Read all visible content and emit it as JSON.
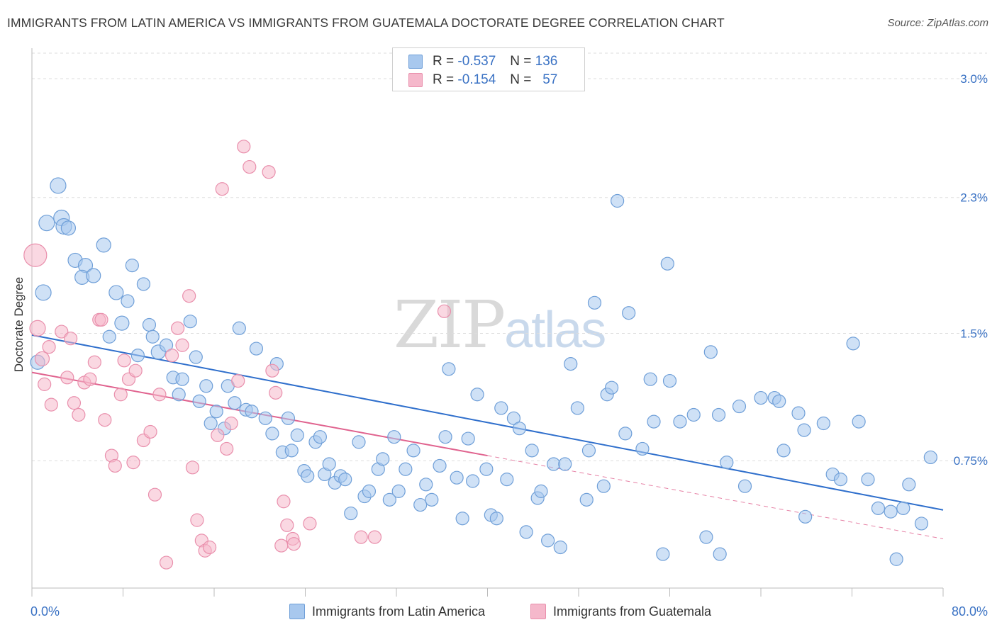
{
  "header": {
    "title": "IMMIGRANTS FROM LATIN AMERICA VS IMMIGRANTS FROM GUATEMALA DOCTORATE DEGREE CORRELATION CHART",
    "source": "Source: ZipAtlas.com"
  },
  "watermark": {
    "zip": "ZIP",
    "atlas": "atlas"
  },
  "legend": {
    "rows": [
      {
        "r_label": "R =",
        "r_value": "-0.537",
        "n_label": "N =",
        "n_value": "136"
      },
      {
        "r_label": "R =",
        "r_value": "-0.154",
        "n_label": "N =",
        "n_value": "57"
      }
    ]
  },
  "colors": {
    "blue_fill": "#a8c8ee",
    "blue_stroke": "#6f9fd8",
    "blue_line": "#2f6fcc",
    "pink_fill": "#f5b8cb",
    "pink_stroke": "#e98fac",
    "pink_line": "#e0628e",
    "tick_label": "#3a72c4",
    "grid": "#dddddd"
  },
  "chart_data": {
    "type": "scatter",
    "title": "IMMIGRANTS FROM LATIN AMERICA VS IMMIGRANTS FROM GUATEMALA DOCTORATE DEGREE CORRELATION CHART",
    "xlabel": "",
    "ylabel": "Doctorate Degree",
    "xlim": [
      0,
      80
    ],
    "ylim": [
      0,
      3.15
    ],
    "x_tick_labels": [
      {
        "value": 0,
        "label": "0.0%"
      },
      {
        "value": 80,
        "label": "80.0%"
      }
    ],
    "y_tick_labels": [
      {
        "value": 0.75,
        "label": "0.75%"
      },
      {
        "value": 1.5,
        "label": "1.5%"
      },
      {
        "value": 2.3,
        "label": "2.3%"
      },
      {
        "value": 3.0,
        "label": "3.0%"
      }
    ],
    "grid": true,
    "legend_position": "top-center",
    "series": [
      {
        "name": "Immigrants from Latin America",
        "color": "#a8c8ee",
        "trend": {
          "x0": 0,
          "y0": 1.49,
          "x1": 80,
          "y1": 0.46,
          "dashed_from": null
        },
        "points": [
          [
            0.5,
            1.33,
            10
          ],
          [
            1.0,
            1.74,
            11
          ],
          [
            1.3,
            2.15,
            11
          ],
          [
            2.3,
            2.37,
            11
          ],
          [
            2.6,
            2.18,
            11
          ],
          [
            2.8,
            2.13,
            11
          ],
          [
            3.2,
            2.12,
            10
          ],
          [
            3.8,
            1.93,
            10
          ],
          [
            4.7,
            1.9,
            10
          ],
          [
            4.4,
            1.83,
            10
          ],
          [
            5.4,
            1.84,
            10
          ],
          [
            6.3,
            2.02,
            10
          ],
          [
            6.8,
            1.48,
            9
          ],
          [
            7.4,
            1.74,
            10
          ],
          [
            7.9,
            1.56,
            10
          ],
          [
            8.4,
            1.69,
            9
          ],
          [
            8.8,
            1.9,
            9
          ],
          [
            9.3,
            1.37,
            9
          ],
          [
            9.8,
            1.79,
            9
          ],
          [
            10.3,
            1.55,
            9
          ],
          [
            10.6,
            1.48,
            9
          ],
          [
            11.1,
            1.39,
            10
          ],
          [
            11.8,
            1.43,
            9
          ],
          [
            12.4,
            1.24,
            9
          ],
          [
            12.9,
            1.14,
            9
          ],
          [
            13.2,
            1.23,
            9
          ],
          [
            13.9,
            1.57,
            9
          ],
          [
            14.4,
            1.36,
            9
          ],
          [
            14.7,
            1.1,
            9
          ],
          [
            15.3,
            1.19,
            9
          ],
          [
            15.7,
            0.97,
            9
          ],
          [
            16.2,
            1.04,
            9
          ],
          [
            16.9,
            0.94,
            9
          ],
          [
            17.2,
            1.19,
            9
          ],
          [
            17.8,
            1.09,
            9
          ],
          [
            18.2,
            1.53,
            9
          ],
          [
            18.8,
            1.05,
            9
          ],
          [
            19.3,
            1.04,
            9
          ],
          [
            19.7,
            1.41,
            9
          ],
          [
            20.5,
            1.0,
            9
          ],
          [
            21.1,
            0.91,
            9
          ],
          [
            21.5,
            1.32,
            9
          ],
          [
            22.0,
            0.8,
            9
          ],
          [
            22.5,
            1.0,
            9
          ],
          [
            22.8,
            0.81,
            9
          ],
          [
            23.3,
            0.9,
            9
          ],
          [
            23.9,
            0.69,
            9
          ],
          [
            24.2,
            0.66,
            9
          ],
          [
            24.9,
            0.86,
            9
          ],
          [
            25.3,
            0.89,
            9
          ],
          [
            25.7,
            0.67,
            9
          ],
          [
            26.1,
            0.73,
            9
          ],
          [
            26.6,
            0.62,
            9
          ],
          [
            27.1,
            0.66,
            9
          ],
          [
            27.5,
            0.64,
            9
          ],
          [
            28.0,
            0.44,
            9
          ],
          [
            28.7,
            0.86,
            9
          ],
          [
            29.2,
            0.54,
            9
          ],
          [
            29.6,
            0.57,
            9
          ],
          [
            30.4,
            0.7,
            9
          ],
          [
            30.8,
            0.76,
            9
          ],
          [
            31.4,
            0.52,
            9
          ],
          [
            31.8,
            0.89,
            9
          ],
          [
            32.2,
            0.57,
            9
          ],
          [
            32.8,
            0.7,
            9
          ],
          [
            33.5,
            0.81,
            9
          ],
          [
            34.1,
            0.49,
            9
          ],
          [
            34.6,
            0.61,
            9
          ],
          [
            35.1,
            0.52,
            9
          ],
          [
            35.8,
            0.72,
            9
          ],
          [
            36.3,
            0.89,
            9
          ],
          [
            36.6,
            1.29,
            9
          ],
          [
            37.3,
            0.65,
            9
          ],
          [
            37.8,
            0.41,
            9
          ],
          [
            38.3,
            0.88,
            9
          ],
          [
            38.7,
            0.63,
            9
          ],
          [
            39.1,
            1.14,
            9
          ],
          [
            39.9,
            0.7,
            9
          ],
          [
            40.3,
            0.43,
            9
          ],
          [
            40.8,
            0.41,
            9
          ],
          [
            41.2,
            1.06,
            9
          ],
          [
            41.7,
            0.64,
            9
          ],
          [
            42.3,
            1.0,
            9
          ],
          [
            42.8,
            0.94,
            9
          ],
          [
            43.4,
            0.33,
            9
          ],
          [
            43.9,
            0.81,
            9
          ],
          [
            44.4,
            0.53,
            9
          ],
          [
            44.7,
            0.57,
            9
          ],
          [
            45.3,
            0.28,
            9
          ],
          [
            45.8,
            0.73,
            9
          ],
          [
            46.4,
            0.24,
            9
          ],
          [
            46.8,
            0.73,
            9
          ],
          [
            47.3,
            1.32,
            9
          ],
          [
            47.9,
            1.06,
            9
          ],
          [
            48.7,
            0.52,
            9
          ],
          [
            48.9,
            0.81,
            9
          ],
          [
            49.4,
            1.68,
            9
          ],
          [
            50.2,
            0.6,
            9
          ],
          [
            50.5,
            1.14,
            9
          ],
          [
            50.9,
            1.18,
            9
          ],
          [
            51.4,
            2.28,
            9
          ],
          [
            52.1,
            0.91,
            9
          ],
          [
            52.4,
            1.62,
            9
          ],
          [
            53.6,
            0.82,
            9
          ],
          [
            54.3,
            1.23,
            9
          ],
          [
            54.6,
            0.98,
            9
          ],
          [
            55.4,
            0.2,
            9
          ],
          [
            55.8,
            1.91,
            9
          ],
          [
            56.0,
            1.22,
            9
          ],
          [
            56.9,
            0.98,
            9
          ],
          [
            58.1,
            1.02,
            9
          ],
          [
            59.2,
            0.3,
            9
          ],
          [
            59.6,
            1.39,
            9
          ],
          [
            60.3,
            1.02,
            9
          ],
          [
            60.4,
            0.2,
            9
          ],
          [
            61.0,
            0.74,
            9
          ],
          [
            62.1,
            1.07,
            9
          ],
          [
            62.6,
            0.6,
            9
          ],
          [
            64.0,
            1.12,
            9
          ],
          [
            65.2,
            1.12,
            9
          ],
          [
            65.6,
            1.1,
            9
          ],
          [
            66.0,
            0.81,
            9
          ],
          [
            67.3,
            1.03,
            9
          ],
          [
            67.8,
            0.93,
            9
          ],
          [
            67.9,
            0.42,
            9
          ],
          [
            69.5,
            0.97,
            9
          ],
          [
            70.3,
            0.67,
            9
          ],
          [
            71.0,
            0.64,
            9
          ],
          [
            72.1,
            1.44,
            9
          ],
          [
            72.6,
            0.98,
            9
          ],
          [
            73.4,
            0.64,
            9
          ],
          [
            74.3,
            0.47,
            9
          ],
          [
            75.4,
            0.45,
            9
          ],
          [
            75.9,
            0.17,
            9
          ],
          [
            76.5,
            0.47,
            9
          ],
          [
            77.0,
            0.61,
            9
          ],
          [
            78.1,
            0.38,
            9
          ],
          [
            78.9,
            0.77,
            9
          ]
        ]
      },
      {
        "name": "Immigrants from Guatemala",
        "color": "#f5b8cb",
        "trend": {
          "x0": 0,
          "y0": 1.27,
          "x1": 80,
          "y1": 0.29,
          "dashed_from": 40
        },
        "points": [
          [
            0.3,
            1.96,
            16
          ],
          [
            0.5,
            1.53,
            11
          ],
          [
            0.9,
            1.35,
            10
          ],
          [
            1.1,
            1.2,
            9
          ],
          [
            1.5,
            1.42,
            9
          ],
          [
            1.7,
            1.08,
            9
          ],
          [
            2.6,
            1.51,
            9
          ],
          [
            3.1,
            1.24,
            9
          ],
          [
            3.4,
            1.47,
            9
          ],
          [
            3.7,
            1.09,
            9
          ],
          [
            4.1,
            1.02,
            9
          ],
          [
            4.6,
            1.21,
            9
          ],
          [
            5.1,
            1.23,
            9
          ],
          [
            5.5,
            1.33,
            9
          ],
          [
            5.9,
            1.58,
            9
          ],
          [
            6.1,
            1.58,
            9
          ],
          [
            6.4,
            0.99,
            9
          ],
          [
            7.0,
            0.78,
            9
          ],
          [
            7.3,
            0.72,
            9
          ],
          [
            7.8,
            1.14,
            9
          ],
          [
            8.1,
            1.34,
            9
          ],
          [
            8.5,
            1.23,
            9
          ],
          [
            8.9,
            0.74,
            9
          ],
          [
            9.1,
            1.28,
            9
          ],
          [
            9.8,
            0.87,
            9
          ],
          [
            10.4,
            0.92,
            9
          ],
          [
            10.8,
            0.55,
            9
          ],
          [
            11.2,
            1.14,
            9
          ],
          [
            11.8,
            0.15,
            9
          ],
          [
            12.3,
            1.37,
            9
          ],
          [
            12.8,
            1.53,
            9
          ],
          [
            13.2,
            1.43,
            9
          ],
          [
            13.8,
            1.72,
            9
          ],
          [
            14.1,
            0.71,
            9
          ],
          [
            14.5,
            0.4,
            9
          ],
          [
            14.9,
            0.28,
            9
          ],
          [
            15.2,
            0.22,
            9
          ],
          [
            15.6,
            0.24,
            9
          ],
          [
            16.3,
            0.9,
            9
          ],
          [
            16.7,
            2.35,
            9
          ],
          [
            17.1,
            0.82,
            9
          ],
          [
            17.5,
            0.97,
            9
          ],
          [
            18.1,
            1.22,
            9
          ],
          [
            18.6,
            2.6,
            9
          ],
          [
            19.1,
            2.48,
            9
          ],
          [
            20.8,
            2.45,
            9
          ],
          [
            21.1,
            1.28,
            9
          ],
          [
            21.4,
            1.15,
            9
          ],
          [
            21.9,
            0.25,
            9
          ],
          [
            22.1,
            0.51,
            9
          ],
          [
            22.4,
            0.37,
            9
          ],
          [
            22.9,
            0.29,
            9
          ],
          [
            23.0,
            0.26,
            9
          ],
          [
            24.4,
            0.38,
            9
          ],
          [
            28.9,
            0.3,
            9
          ],
          [
            30.1,
            0.3,
            9
          ],
          [
            36.2,
            1.63,
            9
          ]
        ]
      }
    ]
  },
  "axes": {
    "x_left_label": "0.0%",
    "x_right_label": "80.0%"
  },
  "bottom_legend": {
    "items": [
      {
        "label": "Immigrants from Latin America"
      },
      {
        "label": "Immigrants from Guatemala"
      }
    ]
  }
}
